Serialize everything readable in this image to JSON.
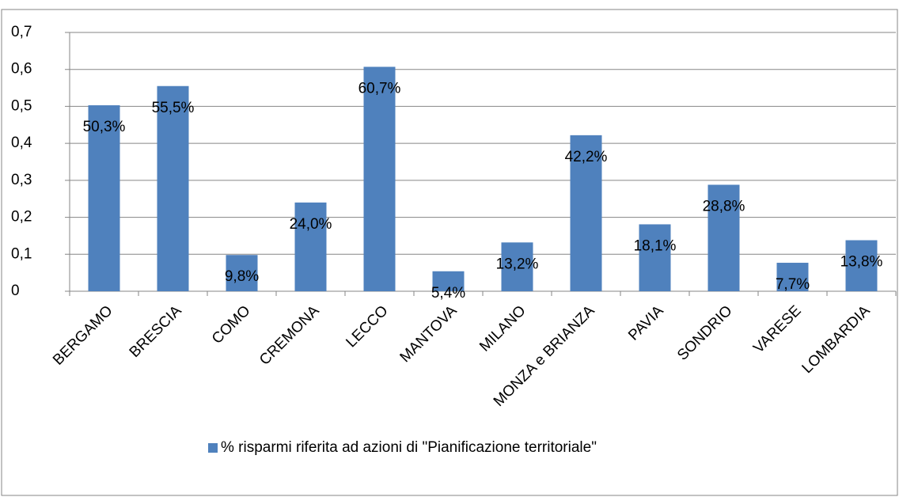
{
  "chart_data": {
    "type": "bar",
    "categories": [
      "BERGAMO",
      "BRESCIA",
      "COMO",
      "CREMONA",
      "LECCO",
      "MANTOVA",
      "MILANO",
      "MONZA e BRIANZA",
      "PAVIA",
      "SONDRIO",
      "VARESE",
      "LOMBARDIA"
    ],
    "series": [
      {
        "name": "% risparmi riferita ad azioni di \"Pianificazione territoriale\"",
        "color": "#4f81bd",
        "values": [
          0.503,
          0.555,
          0.098,
          0.24,
          0.607,
          0.054,
          0.132,
          0.422,
          0.181,
          0.288,
          0.077,
          0.138
        ],
        "value_labels": [
          "50,3%",
          "55,5%",
          "9,8%",
          "24,0%",
          "60,7%",
          "5,4%",
          "13,2%",
          "42,2%",
          "18,1%",
          "28,8%",
          "7,7%",
          "13,8%"
        ]
      }
    ],
    "ylim": [
      0,
      0.7
    ],
    "yticks": [
      0,
      {
        "value": 0.1,
        "label": "0,1"
      },
      {
        "value": 0.2,
        "label": "0,2"
      },
      {
        "value": 0.3,
        "label": "0,3"
      },
      {
        "value": 0.4,
        "label": "0,4"
      },
      {
        "value": 0.5,
        "label": "0,5"
      },
      {
        "value": 0.6,
        "label": "0,6"
      },
      {
        "value": 0.7,
        "label": "0,7"
      }
    ],
    "grid": true,
    "legend": "bottom"
  }
}
